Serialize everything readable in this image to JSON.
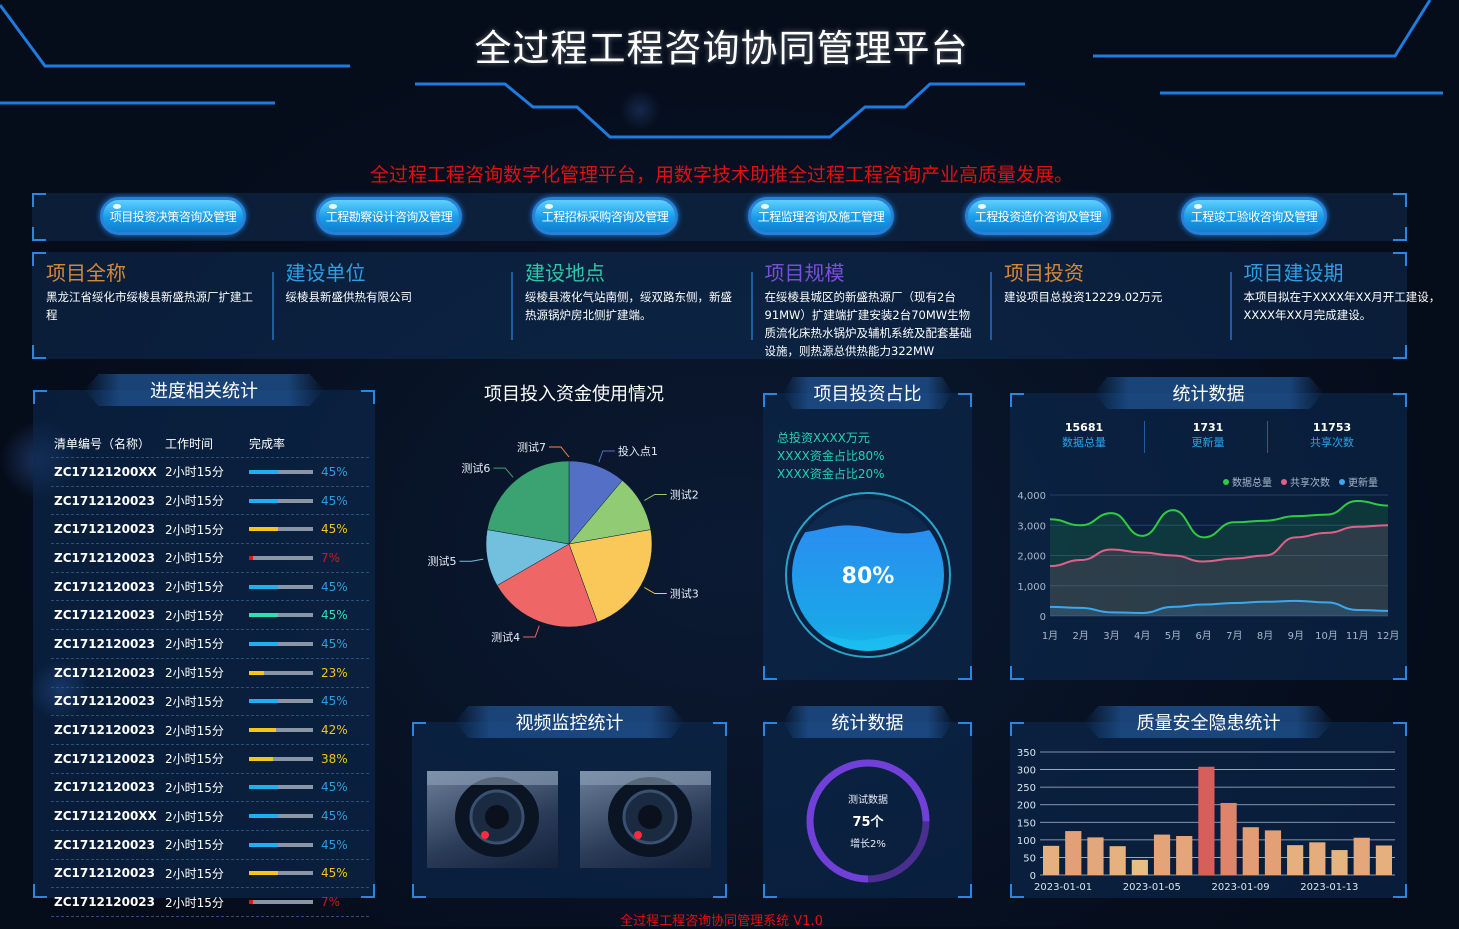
{
  "header": {
    "title": "全过程工程咨询协同管理平台",
    "subtitle": "全过程工程咨询数字化管理平台，用数字技术助推全过程工程咨询产业高质量发展。"
  },
  "nav": {
    "buttons": [
      "项目投资决策咨询及管理",
      "工程勘察设计咨询及管理",
      "工程招标采购咨询及管理",
      "工程监理咨询及施工管理",
      "工程投资造价咨询及管理",
      "工程竣工验收咨询及管理"
    ]
  },
  "info": [
    {
      "title": "项目全称",
      "text": "黑龙江省绥化市绥棱县新盛热源厂扩建工程",
      "color": "#d4883a"
    },
    {
      "title": "建设单位",
      "text": "绥棱县新盛供热有限公司",
      "color": "#2f9ee0"
    },
    {
      "title": "建设地点",
      "text": "绥棱县液化气站南侧，绥双路东侧，新盛热源锅炉房北侧扩建端。",
      "color": "#2ec5a8"
    },
    {
      "title": "项目规模",
      "text": "在绥棱县城区的新盛热源厂（现有2台91MW）扩建端扩建安装2台70MW生物质流化床热水锅炉及辅机系统及配套基础设施，则热源总供热能力322MW",
      "color": "#7a4fd8"
    },
    {
      "title": "项目投资",
      "text": "建设项目总投资12229.02万元",
      "color": "#d4883a"
    },
    {
      "title": "项目建设期",
      "text": "本项目拟在于XXXX年XX月开工建设，XXXX年XX月完成建设。",
      "color": "#2f9ee0"
    }
  ],
  "progress": {
    "title": "进度相关统计",
    "headers": [
      "清单编号（名称）",
      "工作时间",
      "完成率"
    ],
    "rows": [
      {
        "id": "ZC17121200XX",
        "time": "2小时15分",
        "pct": 45,
        "label": "45%",
        "color": "#1fb0f0",
        "text_color": "#2a9ee0"
      },
      {
        "id": "ZC1712120023",
        "time": "2小时15分",
        "pct": 45,
        "label": "45%",
        "color": "#1fb0f0",
        "text_color": "#2a9ee0"
      },
      {
        "id": "ZC1712120023",
        "time": "2小时15分",
        "pct": 45,
        "label": "45%",
        "color": "#f5c518",
        "text_color": "#f5c518"
      },
      {
        "id": "ZC1712120023",
        "time": "2小时15分",
        "pct": 7,
        "label": "7%",
        "color": "#e01818",
        "text_color": "#d01818"
      },
      {
        "id": "ZC1712120023",
        "time": "2小时15分",
        "pct": 45,
        "label": "45%",
        "color": "#1fb0f0",
        "text_color": "#2a9ee0"
      },
      {
        "id": "ZC1712120023",
        "time": "2小时15分",
        "pct": 45,
        "label": "45%",
        "color": "#30e0b0",
        "text_color": "#30e0b0"
      },
      {
        "id": "ZC1712120023",
        "time": "2小时15分",
        "pct": 45,
        "label": "45%",
        "color": "#1fb0f0",
        "text_color": "#2a9ee0"
      },
      {
        "id": "ZC1712120023",
        "time": "2小时15分",
        "pct": 23,
        "label": "23%",
        "color": "#f5c518",
        "text_color": "#f5c518"
      },
      {
        "id": "ZC1712120023",
        "time": "2小时15分",
        "pct": 45,
        "label": "45%",
        "color": "#1fb0f0",
        "text_color": "#2a9ee0"
      },
      {
        "id": "ZC1712120023",
        "time": "2小时15分",
        "pct": 42,
        "label": "42%",
        "color": "#f5c518",
        "text_color": "#f5c518"
      },
      {
        "id": "ZC1712120023",
        "time": "2小时15分",
        "pct": 38,
        "label": "38%",
        "color": "#f5c518",
        "text_color": "#f5c518"
      },
      {
        "id": "ZC1712120023",
        "time": "2小时15分",
        "pct": 45,
        "label": "45%",
        "color": "#1fb0f0",
        "text_color": "#2a9ee0"
      },
      {
        "id": "ZC17121200XX",
        "time": "2小时15分",
        "pct": 45,
        "label": "45%",
        "color": "#1fb0f0",
        "text_color": "#2a9ee0"
      },
      {
        "id": "ZC1712120023",
        "time": "2小时15分",
        "pct": 45,
        "label": "45%",
        "color": "#1fb0f0",
        "text_color": "#2a9ee0"
      },
      {
        "id": "ZC1712120023",
        "time": "2小时15分",
        "pct": 45,
        "label": "45%",
        "color": "#f5c518",
        "text_color": "#f5c518"
      },
      {
        "id": "ZC1712120023",
        "time": "2小时15分",
        "pct": 7,
        "label": "7%",
        "color": "#e01818",
        "text_color": "#d01818"
      }
    ]
  },
  "investment": {
    "title": "项目投资占比",
    "lines": [
      "总投资XXXX万元",
      "XXXX资金占比80%",
      "XXXX资金占比20%"
    ],
    "gauge_label": "80%",
    "gauge_value": 0.8
  },
  "stats": {
    "title": "统计数据",
    "items": [
      {
        "value": "15681",
        "label": "数据总量"
      },
      {
        "value": "1731",
        "label": "更新量"
      },
      {
        "value": "11753",
        "label": "共享次数"
      }
    ]
  },
  "video": {
    "title": "视频监控统计"
  },
  "ring": {
    "title": "统计数据",
    "name": "测试数据",
    "value": "75个",
    "growth": "增长2%",
    "fraction": 0.75
  },
  "quality": {
    "title": "质量安全隐患统计"
  },
  "footer": "全过程工程咨询协同管理系统 V1.0",
  "chart_data": [
    {
      "type": "pie",
      "title": "项目投入资金使用情况",
      "categories": [
        "投入点1",
        "测试2",
        "测试3",
        "测试4",
        "测试5",
        "测试6",
        "测试7"
      ],
      "values": [
        10,
        10,
        20,
        20,
        10,
        20,
        0
      ],
      "colors": [
        "#5470c6",
        "#91cc75",
        "#fac858",
        "#ee6666",
        "#73c0de",
        "#3ba272",
        "#fc8452"
      ]
    },
    {
      "type": "area",
      "categories": [
        "1月",
        "2月",
        "3月",
        "4月",
        "5月",
        "6月",
        "7月",
        "8月",
        "9月",
        "10月",
        "11月",
        "12月"
      ],
      "ylim": [
        0,
        4000
      ],
      "yticks": [
        "0",
        "1,000",
        "2,000",
        "3,000",
        "4,000"
      ],
      "legend": "top-right",
      "grid": true,
      "series": [
        {
          "name": "数据总量",
          "color": "#2ecc40",
          "values": [
            3200,
            3000,
            3400,
            2650,
            3500,
            2600,
            3100,
            3150,
            3300,
            3350,
            3800,
            3650
          ]
        },
        {
          "name": "共享次数",
          "color": "#e0608a",
          "values": [
            1650,
            1850,
            2200,
            2100,
            2000,
            1800,
            1900,
            2000,
            2600,
            2750,
            2950,
            3000
          ]
        },
        {
          "name": "更新量",
          "color": "#3aa8f0",
          "values": [
            300,
            270,
            120,
            100,
            300,
            380,
            430,
            470,
            500,
            450,
            200,
            170
          ]
        }
      ]
    },
    {
      "type": "bar",
      "categories": [
        "2023-01-01",
        "2023-01-02",
        "2023-01-03",
        "2023-01-04",
        "2023-01-05",
        "2023-01-06",
        "2023-01-07",
        "2023-01-08",
        "2023-01-09",
        "2023-01-10",
        "2023-01-11",
        "2023-01-12",
        "2023-01-13",
        "2023-01-14",
        "2023-01-15",
        "2023-01-16"
      ],
      "xtick_labels": [
        "2023-01-01",
        "2023-01-05",
        "2023-01-09",
        "2023-01-13"
      ],
      "values": [
        83,
        125,
        107,
        82,
        43,
        115,
        111,
        308,
        205,
        136,
        127,
        85,
        93,
        71,
        106,
        84
      ],
      "ylim": [
        0,
        350
      ],
      "yticks": [
        "0",
        "50",
        "100",
        "150",
        "200",
        "250",
        "300",
        "350"
      ],
      "grid": true
    }
  ]
}
